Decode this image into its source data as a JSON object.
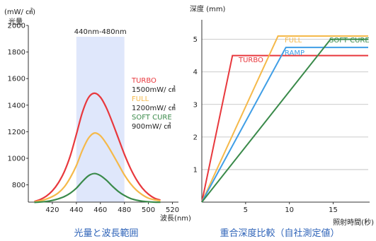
{
  "chart_data": [
    {
      "type": "line",
      "unit_label": "(mW/ ㎠)",
      "ylabel": "光量",
      "xlabel": "波長(nm)",
      "caption": "光量と波長範囲",
      "xlim": [
        400,
        525
      ],
      "ylim": [
        670,
        2000
      ],
      "xticks": [
        420,
        440,
        460,
        480,
        500,
        520
      ],
      "yticks": [
        800,
        1000,
        1200,
        1400,
        1600,
        1800,
        2000
      ],
      "band": {
        "label": "440nm-480nm",
        "from": 440,
        "to": 480,
        "color": "#dfe7fb"
      },
      "x": [
        405,
        410,
        415,
        420,
        425,
        430,
        435,
        440,
        445,
        450,
        455,
        460,
        465,
        470,
        475,
        480,
        485,
        490,
        495,
        500,
        505,
        510
      ],
      "series": [
        {
          "name": "TURBO",
          "power": "1500mW/ ㎠",
          "color": "#e8383d",
          "values": [
            675,
            690,
            715,
            755,
            815,
            900,
            1020,
            1180,
            1345,
            1455,
            1490,
            1460,
            1380,
            1270,
            1150,
            1030,
            925,
            840,
            775,
            730,
            700,
            685
          ]
        },
        {
          "name": "FULL",
          "power": "1200mW/ ㎠",
          "color": "#f5b94a",
          "values": [
            672,
            680,
            693,
            712,
            740,
            785,
            855,
            945,
            1060,
            1150,
            1190,
            1170,
            1110,
            1035,
            955,
            875,
            810,
            760,
            725,
            700,
            688,
            680
          ]
        },
        {
          "name": "SOFT CURE",
          "power": "900mW/ ㎠",
          "color": "#3a8a4a",
          "values": [
            668,
            671,
            675,
            683,
            695,
            712,
            738,
            775,
            825,
            868,
            885,
            870,
            835,
            790,
            750,
            720,
            698,
            685,
            677,
            673,
            670,
            669
          ]
        }
      ]
    },
    {
      "type": "line",
      "ylabel": "深度 (mm)",
      "xlabel": "照射時間(秒)",
      "caption": "重合深度比較（自社測定値）",
      "xlim": [
        0,
        19
      ],
      "ylim": [
        0,
        5.6
      ],
      "xticks": [
        5,
        10,
        15
      ],
      "yticks": [
        1,
        2,
        3,
        4,
        5
      ],
      "series": [
        {
          "name": "TURBO",
          "color": "#e8383d",
          "points": [
            [
              0,
              0
            ],
            [
              3.5,
              4.5
            ],
            [
              19,
              4.5
            ]
          ]
        },
        {
          "name": "FULL",
          "color": "#f5b94a",
          "points": [
            [
              0,
              0
            ],
            [
              8.7,
              5.1
            ],
            [
              19,
              5.1
            ]
          ]
        },
        {
          "name": "RAMP",
          "color": "#3f9ee6",
          "points": [
            [
              0,
              0
            ],
            [
              9.6,
              4.75
            ],
            [
              19,
              4.75
            ]
          ]
        },
        {
          "name": "SOFT CURE",
          "color": "#3a8a4a",
          "points": [
            [
              0,
              0
            ],
            [
              14.7,
              5.0
            ],
            [
              19,
              5.0
            ]
          ]
        }
      ]
    }
  ]
}
